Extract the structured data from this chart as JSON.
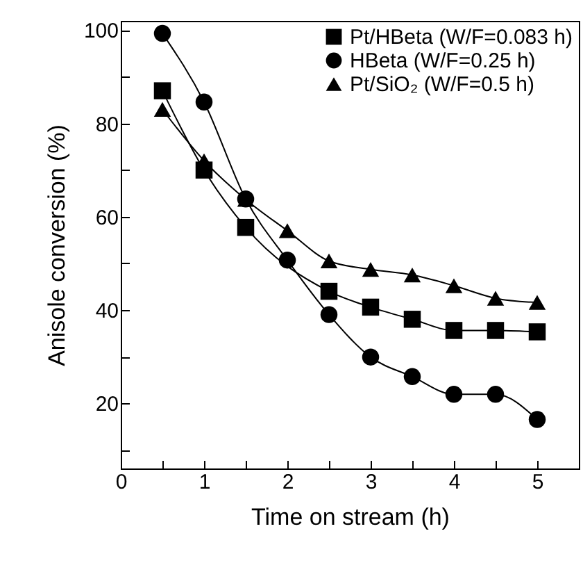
{
  "chart_data": {
    "type": "line",
    "xlabel": "Time on stream (h)",
    "ylabel": "Anisole conversion (%)",
    "x": [
      0.5,
      1,
      1.5,
      2,
      2.5,
      3,
      3.5,
      4,
      4.5,
      5
    ],
    "series": [
      {
        "name": "Pt/HBeta (W/F=0.083 h)",
        "color": "#000000",
        "marker": "square",
        "values": [
          87,
          70,
          57.7,
          null,
          44,
          40.6,
          38,
          35.6,
          35.6,
          35.3
        ]
      },
      {
        "name": "HBeta (W/F=0.25 h)",
        "color": "#000000",
        "marker": "circle",
        "values": [
          99.3,
          84.6,
          63.8,
          50.7,
          39,
          29.9,
          25.7,
          21.9,
          21.9,
          16.5
        ]
      },
      {
        "name": "Pt/SiO₂ (W/F=0.5 h)",
        "color": "#000000",
        "marker": "triangle",
        "values": [
          83,
          72,
          63.7,
          57,
          50.5,
          48.7,
          47.5,
          45.2,
          42.5,
          41.6
        ]
      }
    ],
    "xlim": [
      0,
      5.5
    ],
    "xticks": [
      0,
      {
        "value": 0.5,
        "label": null
      },
      1,
      {
        "value": 1.5,
        "label": null
      },
      2,
      {
        "value": 2.5,
        "label": null
      },
      3,
      {
        "value": 3.5,
        "label": null
      },
      4,
      {
        "value": 4.5,
        "label": null
      },
      5
    ],
    "ylim": [
      6,
      102
    ],
    "yticks": [
      {
        "value": 10,
        "label": null
      },
      20,
      {
        "value": 30,
        "label": null
      },
      40,
      {
        "value": 50,
        "label": null
      },
      60,
      {
        "value": 70,
        "label": null
      },
      80,
      {
        "value": 90,
        "label": null
      },
      100
    ],
    "legend": "top right",
    "grid": false
  }
}
